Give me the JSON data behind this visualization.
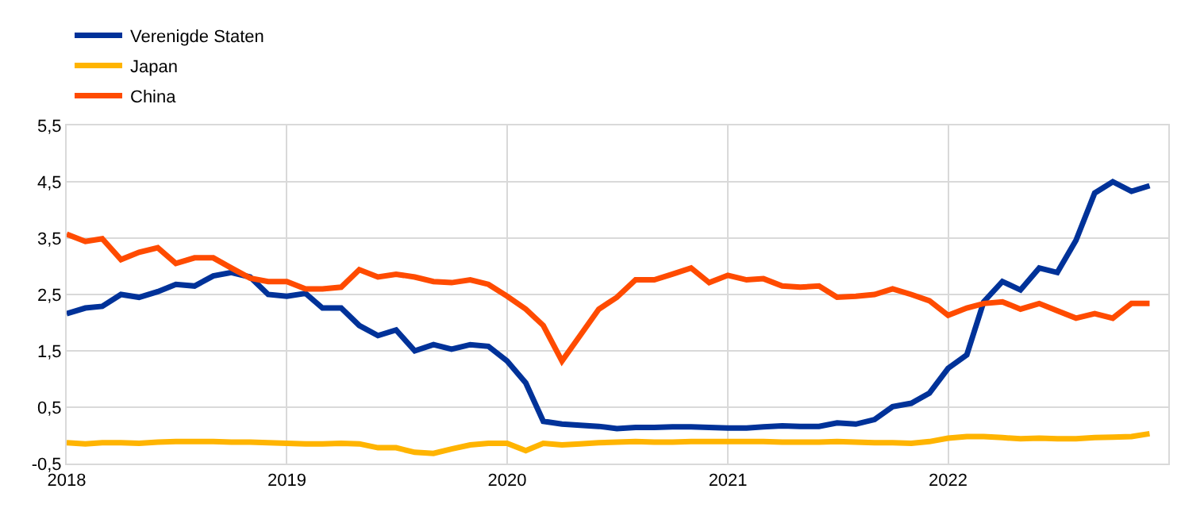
{
  "chart_data": {
    "type": "line",
    "x": [
      "2018-01",
      "2018-02",
      "2018-03",
      "2018-04",
      "2018-05",
      "2018-06",
      "2018-07",
      "2018-08",
      "2018-09",
      "2018-10",
      "2018-11",
      "2018-12",
      "2019-01",
      "2019-02",
      "2019-03",
      "2019-04",
      "2019-05",
      "2019-06",
      "2019-07",
      "2019-08",
      "2019-09",
      "2019-10",
      "2019-11",
      "2019-12",
      "2020-01",
      "2020-02",
      "2020-03",
      "2020-04",
      "2020-05",
      "2020-06",
      "2020-07",
      "2020-08",
      "2020-09",
      "2020-10",
      "2020-11",
      "2020-12",
      "2021-01",
      "2021-02",
      "2021-03",
      "2021-04",
      "2021-05",
      "2021-06",
      "2021-07",
      "2021-08",
      "2021-09",
      "2021-10",
      "2021-11",
      "2021-12",
      "2022-01",
      "2022-02",
      "2022-03",
      "2022-04",
      "2022-05",
      "2022-06",
      "2022-07",
      "2022-08",
      "2022-09",
      "2022-10",
      "2022-11",
      "2022-12"
    ],
    "series": [
      {
        "name": "Verenigde Staten",
        "color": "#003299",
        "values": [
          2.16,
          2.26,
          2.29,
          2.5,
          2.45,
          2.55,
          2.68,
          2.65,
          2.83,
          2.89,
          2.81,
          2.5,
          2.47,
          2.52,
          2.26,
          2.26,
          1.95,
          1.77,
          1.87,
          1.5,
          1.61,
          1.53,
          1.61,
          1.58,
          1.32,
          0.93,
          0.25,
          0.2,
          0.18,
          0.16,
          0.12,
          0.14,
          0.14,
          0.15,
          0.15,
          0.14,
          0.13,
          0.13,
          0.15,
          0.17,
          0.16,
          0.16,
          0.22,
          0.2,
          0.28,
          0.51,
          0.57,
          0.75,
          1.19,
          1.43,
          2.37,
          2.73,
          2.58,
          2.97,
          2.89,
          3.46,
          4.3,
          4.5,
          4.33,
          4.43
        ]
      },
      {
        "name": "Japan",
        "color": "#ffb400",
        "values": [
          -0.13,
          -0.15,
          -0.13,
          -0.13,
          -0.14,
          -0.12,
          -0.11,
          -0.11,
          -0.11,
          -0.12,
          -0.12,
          -0.13,
          -0.14,
          -0.15,
          -0.15,
          -0.14,
          -0.15,
          -0.22,
          -0.22,
          -0.3,
          -0.32,
          -0.24,
          -0.17,
          -0.14,
          -0.14,
          -0.27,
          -0.14,
          -0.17,
          -0.15,
          -0.13,
          -0.12,
          -0.11,
          -0.12,
          -0.12,
          -0.11,
          -0.11,
          -0.11,
          -0.11,
          -0.11,
          -0.12,
          -0.12,
          -0.12,
          -0.11,
          -0.12,
          -0.13,
          -0.13,
          -0.14,
          -0.11,
          -0.05,
          -0.02,
          -0.02,
          -0.04,
          -0.06,
          -0.05,
          -0.06,
          -0.06,
          -0.04,
          -0.03,
          -0.02,
          0.03
        ]
      },
      {
        "name": "China",
        "color": "#ff4b00",
        "values": [
          3.57,
          3.44,
          3.49,
          3.12,
          3.25,
          3.33,
          3.05,
          3.15,
          3.15,
          2.97,
          2.79,
          2.73,
          2.73,
          2.6,
          2.6,
          2.63,
          2.94,
          2.81,
          2.86,
          2.81,
          2.73,
          2.71,
          2.76,
          2.68,
          2.47,
          2.24,
          1.95,
          1.32,
          1.77,
          2.24,
          2.45,
          2.76,
          2.76,
          2.86,
          2.97,
          2.71,
          2.84,
          2.76,
          2.78,
          2.65,
          2.63,
          2.65,
          2.45,
          2.47,
          2.5,
          2.6,
          2.5,
          2.39,
          2.13,
          2.26,
          2.34,
          2.37,
          2.24,
          2.34,
          2.21,
          2.08,
          2.16,
          2.08,
          2.34,
          2.34
        ]
      }
    ],
    "xlim": [
      "2018-01",
      "2023-01"
    ],
    "xticks": [
      {
        "value": "2018-01",
        "label": "2018"
      },
      {
        "value": "2019-01",
        "label": "2019"
      },
      {
        "value": "2020-01",
        "label": "2020"
      },
      {
        "value": "2021-01",
        "label": "2021"
      },
      {
        "value": "2022-01",
        "label": "2022"
      }
    ],
    "ylim": [
      -0.5,
      5.5
    ],
    "yticks": [
      {
        "value": -0.5,
        "label": "-0,5"
      },
      {
        "value": 0.5,
        "label": "0,5"
      },
      {
        "value": 1.5,
        "label": "1,5"
      },
      {
        "value": 2.5,
        "label": "2,5"
      },
      {
        "value": 3.5,
        "label": "3,5"
      },
      {
        "value": 4.5,
        "label": "4,5"
      },
      {
        "value": 5.5,
        "label": "5,5"
      }
    ],
    "grid": true,
    "legend": "top left",
    "marker": "none",
    "line_style": "solid"
  }
}
